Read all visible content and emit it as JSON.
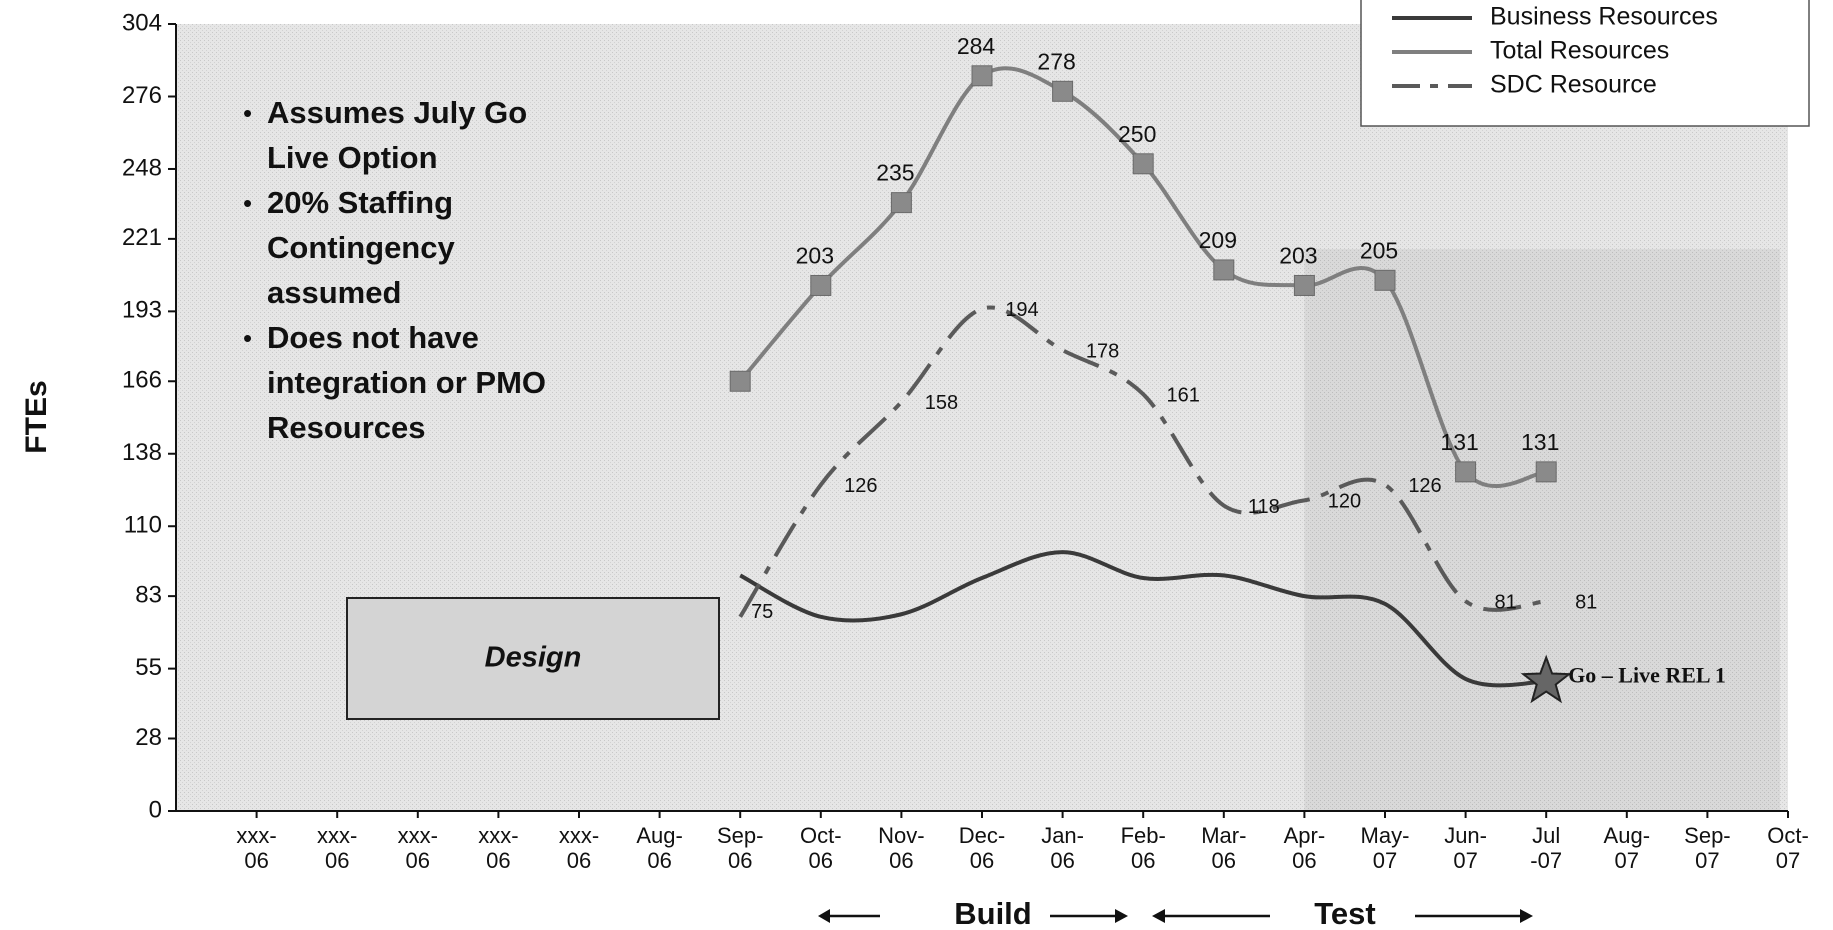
{
  "chart_data": {
    "type": "line",
    "y_label": "FTEs",
    "categories": [
      "xxx- 06",
      "xxx- 06",
      "xxx- 06",
      "xxx- 06",
      "xxx- 06",
      "Aug- 06",
      "Sep- 06",
      "Oct- 06",
      "Nov- 06",
      "Dec- 06",
      "Jan- 06",
      "Feb- 06",
      "Mar- 06",
      "Apr- 06",
      "May- 07",
      "Jun- 07",
      "Jul -07",
      "Aug- 07",
      "Sep- 07",
      "Oct- 07"
    ],
    "series": [
      {
        "name": "Business Resources",
        "color": "#3a3a3a",
        "dash": "solid",
        "marker": "none",
        "values": [
          null,
          null,
          null,
          null,
          null,
          null,
          91,
          75,
          76,
          90,
          100,
          90,
          91,
          83,
          80,
          51,
          50,
          null,
          null,
          null
        ]
      },
      {
        "name": "Total Resources",
        "color": "#7f7f7f",
        "dash": "solid",
        "marker": "square",
        "values": [
          null,
          null,
          null,
          null,
          null,
          null,
          166,
          203,
          235,
          284,
          278,
          250,
          209,
          203,
          205,
          131,
          131,
          null,
          null,
          null
        ],
        "value_labels": [
          null,
          null,
          null,
          null,
          null,
          null,
          null,
          "203",
          "235",
          "284",
          "278",
          "250",
          "209",
          "203",
          "205",
          "131",
          "131",
          null,
          null,
          null
        ]
      },
      {
        "name": "SDC Resource",
        "color": "#5a5a5a",
        "dash": "dashed",
        "marker": "none",
        "values": [
          null,
          null,
          null,
          null,
          null,
          null,
          75,
          126,
          158,
          194,
          178,
          161,
          118,
          120,
          126,
          81,
          81,
          null,
          null,
          null
        ]
      }
    ],
    "ylim": [
      0,
      304
    ],
    "yticks": [
      0,
      28,
      55,
      83,
      110,
      138,
      166,
      193,
      221,
      248,
      276,
      304
    ],
    "legend": "upper right",
    "notes": [
      [
        "Assumes July Go",
        "Live Option"
      ],
      [
        "20% Staffing",
        "Contingency",
        "assumed"
      ],
      [
        "Does not have",
        "integration or PMO",
        "Resources"
      ]
    ],
    "design_box": "Design",
    "milestone": "Go – Live  REL 1",
    "phases": [
      "Build",
      "Test"
    ]
  }
}
